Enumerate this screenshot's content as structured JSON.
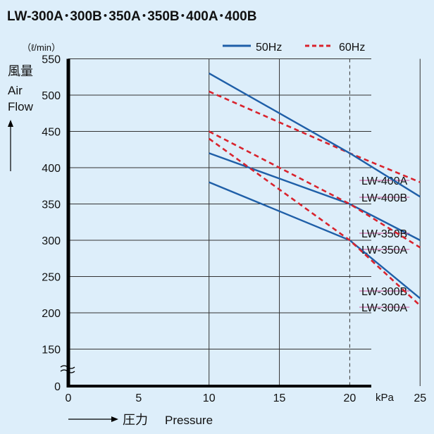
{
  "chart_data": {
    "type": "line",
    "title": "LW-300A･300B･350A･350B･400A･400B",
    "ylabel_unit": "（ℓ/min）",
    "ylabel_jp": "風量",
    "ylabel_en": [
      "Air",
      "Flow"
    ],
    "xlabel_jp": "圧力",
    "xlabel_en": "Pressure",
    "xunit": "kPa",
    "xlim": [
      0,
      27
    ],
    "ylim": [
      0,
      550
    ],
    "y_axis_break": true,
    "xticks": [
      0,
      5,
      10,
      15,
      20,
      25
    ],
    "yticks": [
      0,
      150,
      200,
      250,
      300,
      350,
      400,
      450,
      500,
      550
    ],
    "grid": true,
    "legend": {
      "placement": "top-right",
      "entries": [
        {
          "name": "50Hz",
          "style": "solid",
          "color": "#1f5fa8"
        },
        {
          "name": "60Hz",
          "style": "dashed",
          "color": "#d9232d"
        }
      ]
    },
    "series": [
      {
        "name": "LW-400A",
        "freq": "60Hz",
        "x": [
          10,
          20,
          25
        ],
        "y": [
          505,
          420,
          380
        ]
      },
      {
        "name": "LW-400B",
        "freq": "50Hz",
        "x": [
          10,
          20,
          25
        ],
        "y": [
          530,
          420,
          360
        ]
      },
      {
        "name": "LW-350B",
        "freq": "50Hz",
        "x": [
          10,
          20,
          25
        ],
        "y": [
          420,
          350,
          300
        ]
      },
      {
        "name": "LW-350A",
        "freq": "60Hz",
        "x": [
          10,
          20,
          25
        ],
        "y": [
          450,
          350,
          290
        ]
      },
      {
        "name": "LW-300B",
        "freq": "50Hz",
        "x": [
          10,
          20,
          25
        ],
        "y": [
          380,
          300,
          220
        ]
      },
      {
        "name": "LW-300A",
        "freq": "60Hz",
        "x": [
          10,
          20,
          25
        ],
        "y": [
          440,
          300,
          210
        ]
      }
    ],
    "colors": {
      "50Hz": "#1f5fa8",
      "60Hz": "#d9232d",
      "leader": "#d0509a"
    }
  }
}
